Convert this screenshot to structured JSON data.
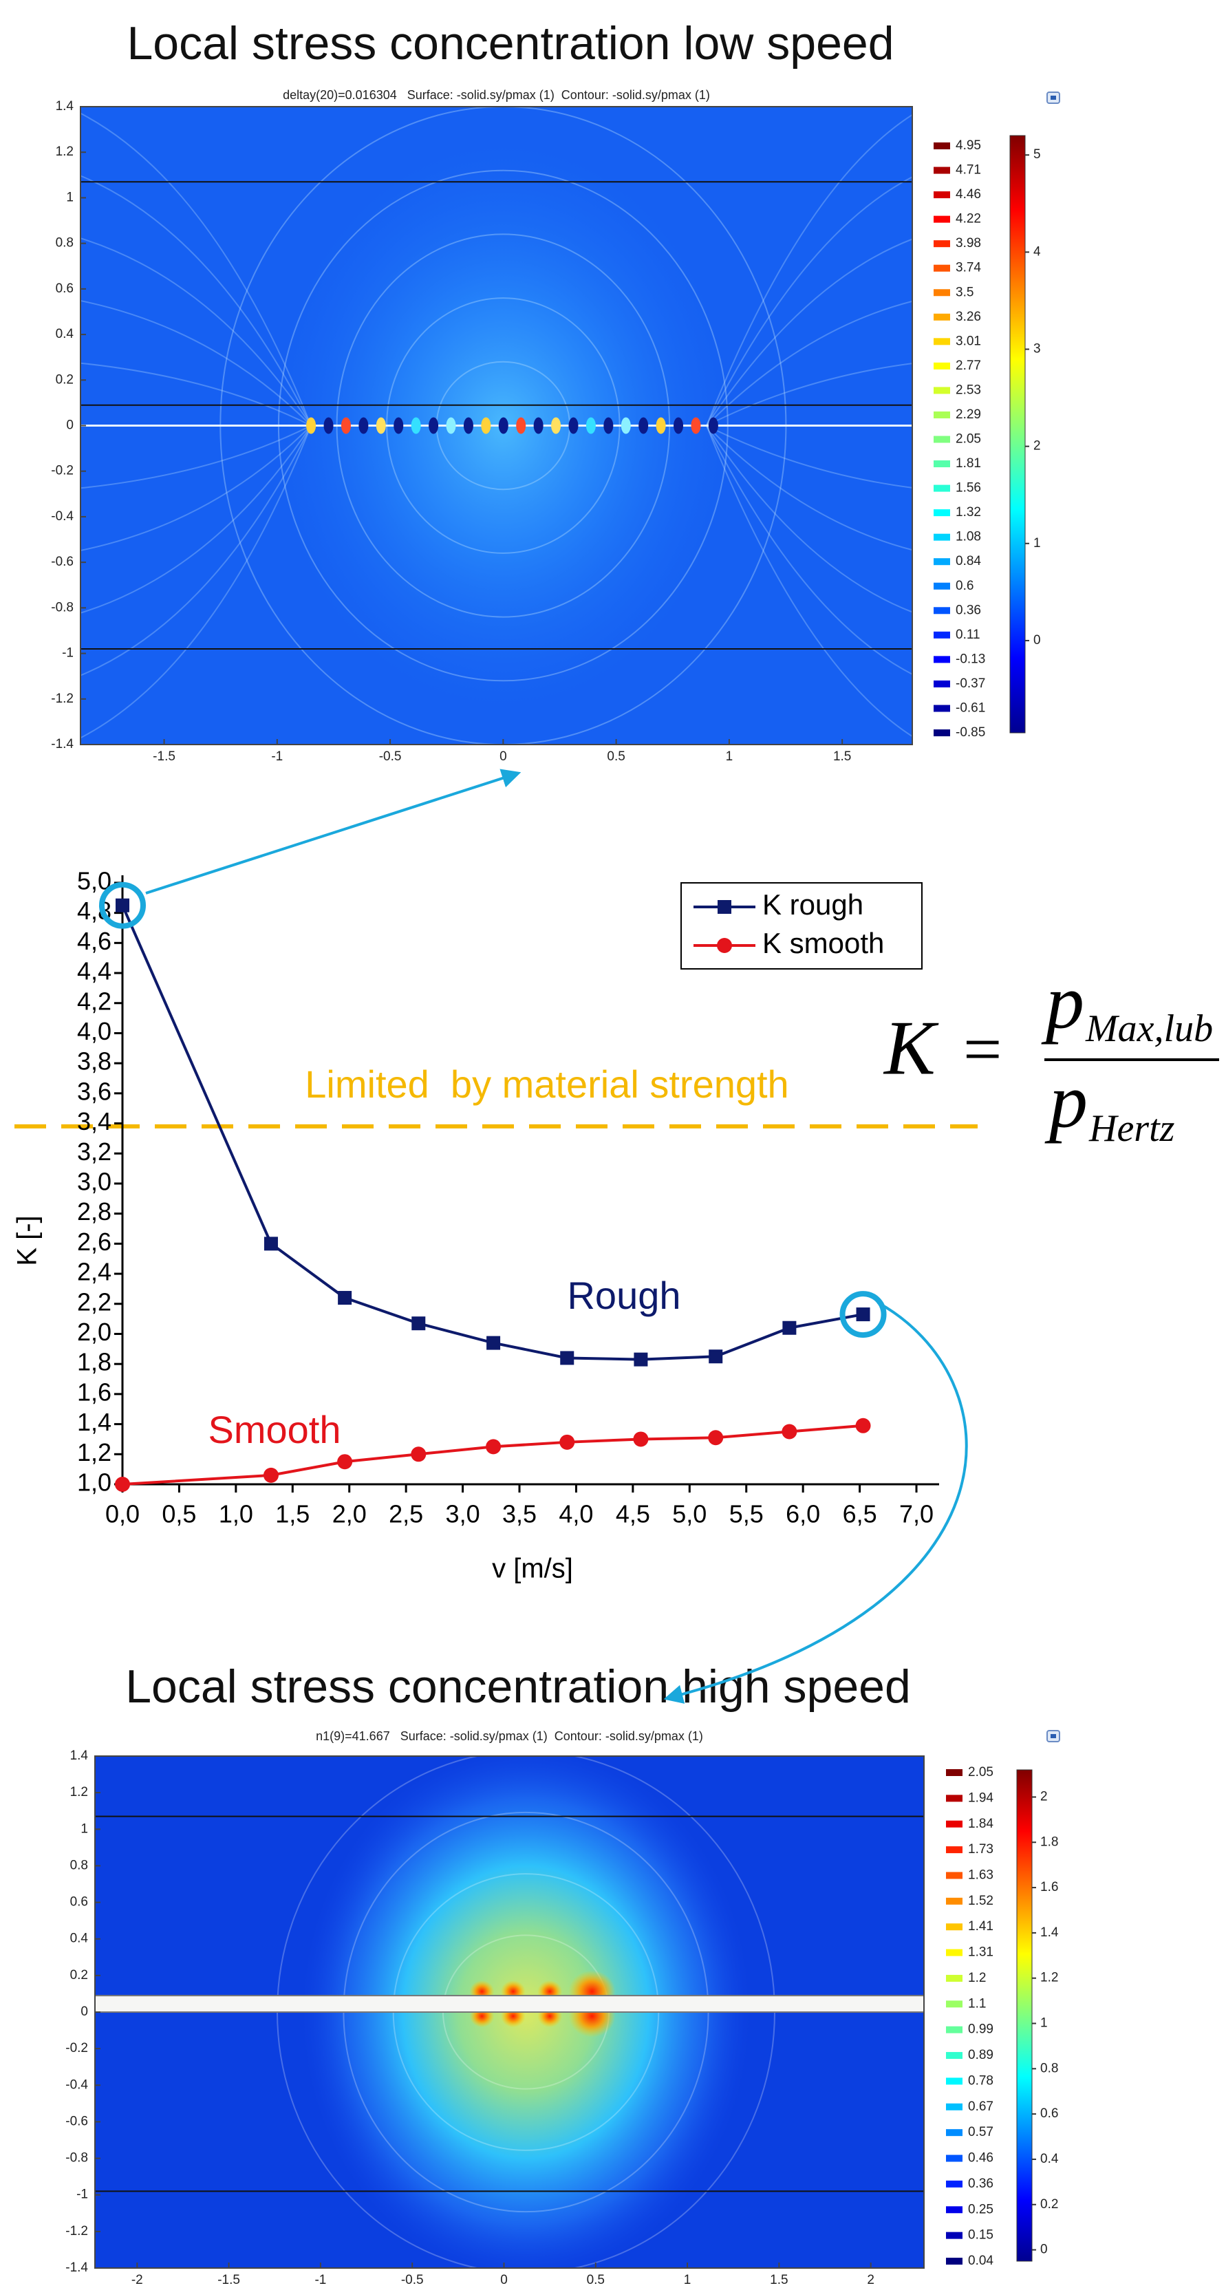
{
  "chart_data": [
    {
      "type": "contour",
      "title": "Local stress concentration low speed",
      "subtitle": "deltay(20)=0.016304   Surface: -solid.sy/pmax (1)  Contour: -solid.sy/pmax (1)",
      "xlim": [
        -1.87,
        1.81
      ],
      "xticks": [
        -1.5,
        -1,
        -0.5,
        0,
        0.5,
        1,
        1.5
      ],
      "ylim": [
        -1.4,
        1.4
      ],
      "yticks": [
        -1.4,
        -1.2,
        -1,
        -0.8,
        -0.6,
        -0.4,
        -0.2,
        0,
        0.2,
        0.4,
        0.6,
        0.8,
        1,
        1.2,
        1.4
      ],
      "levels": [
        4.95,
        4.71,
        4.46,
        4.22,
        3.98,
        3.74,
        3.5,
        3.26,
        3.01,
        2.77,
        2.53,
        2.29,
        2.05,
        1.81,
        1.56,
        1.32,
        1.08,
        0.84,
        0.6,
        0.36,
        0.11,
        -0.13,
        -0.37,
        -0.61,
        -0.85
      ],
      "colorbar_lim": [
        -0.95,
        5.2
      ],
      "colorbar_ticks": [
        0,
        1,
        2,
        3,
        4,
        5
      ],
      "boundary_lines": [
        1.07,
        0.09,
        -0.98
      ]
    },
    {
      "type": "line",
      "xlabel": "v [m/s]",
      "ylabel": "K [-]",
      "xlim": [
        0,
        7.2
      ],
      "ylim": [
        1,
        5.05
      ],
      "xticks": [
        {
          "value": 0,
          "label": "0,0"
        },
        {
          "value": 0.5,
          "label": "0,5"
        },
        {
          "value": 1,
          "label": "1,0"
        },
        {
          "value": 1.5,
          "label": "1,5"
        },
        {
          "value": 2,
          "label": "2,0"
        },
        {
          "value": 2.5,
          "label": "2,5"
        },
        {
          "value": 3,
          "label": "3,0"
        },
        {
          "value": 3.5,
          "label": "3,5"
        },
        {
          "value": 4,
          "label": "4,0"
        },
        {
          "value": 4.5,
          "label": "4,5"
        },
        {
          "value": 5,
          "label": "5,0"
        },
        {
          "value": 5.5,
          "label": "5,5"
        },
        {
          "value": 6,
          "label": "6,0"
        },
        {
          "value": 6.5,
          "label": "6,5"
        },
        {
          "value": 7,
          "label": "7,0"
        }
      ],
      "yticks": [
        {
          "value": 1,
          "label": "1,0"
        },
        {
          "value": 1.2,
          "label": "1,2"
        },
        {
          "value": 1.4,
          "label": "1,4"
        },
        {
          "value": 1.6,
          "label": "1,6"
        },
        {
          "value": 1.8,
          "label": "1,8"
        },
        {
          "value": 2,
          "label": "2,0"
        },
        {
          "value": 2.2,
          "label": "2,2"
        },
        {
          "value": 2.4,
          "label": "2,4"
        },
        {
          "value": 2.6,
          "label": "2,6"
        },
        {
          "value": 2.8,
          "label": "2,8"
        },
        {
          "value": 3,
          "label": "3,0"
        },
        {
          "value": 3.2,
          "label": "3,2"
        },
        {
          "value": 3.4,
          "label": "3,4"
        },
        {
          "value": 3.6,
          "label": "3,6"
        },
        {
          "value": 3.8,
          "label": "3,8"
        },
        {
          "value": 4,
          "label": "4,0"
        },
        {
          "value": 4.2,
          "label": "4,2"
        },
        {
          "value": 4.4,
          "label": "4,4"
        },
        {
          "value": 4.6,
          "label": "4,6"
        },
        {
          "value": 4.8,
          "label": "4,8"
        },
        {
          "value": 5,
          "label": "5,0"
        }
      ],
      "x": [
        0,
        1.31,
        1.96,
        2.61,
        3.27,
        3.92,
        4.57,
        5.23,
        5.88,
        6.53
      ],
      "series": [
        {
          "name": "K rough",
          "color": "#0d1a6b",
          "marker": "square",
          "values": [
            4.85,
            2.6,
            2.24,
            2.07,
            1.94,
            1.84,
            1.83,
            1.85,
            2.04,
            2.13
          ]
        },
        {
          "name": "K smooth",
          "color": "#e3141b",
          "marker": "circle",
          "values": [
            1.0,
            1.06,
            1.15,
            1.2,
            1.25,
            1.28,
            1.3,
            1.31,
            1.35,
            1.39
          ]
        }
      ],
      "annotations": [
        "Rough",
        "Smooth"
      ],
      "threshold": {
        "value": 3.38,
        "label": "Limited  by material strength",
        "color": "#f5b800"
      },
      "formula": {
        "lhs": "K",
        "equals": "=",
        "numerator": {
          "symbol": "p",
          "subscript": "Max,lub"
        },
        "denominator": {
          "symbol": "p",
          "subscript": "Hertz"
        }
      }
    },
    {
      "type": "contour",
      "title": "Local stress concentration high speed",
      "subtitle": "n1(9)=41.667   Surface: -solid.sy/pmax (1)  Contour: -solid.sy/pmax (1)",
      "xlim": [
        -2.23,
        2.29
      ],
      "xticks": [
        -2,
        -1.5,
        -1,
        -0.5,
        0,
        0.5,
        1,
        1.5,
        2
      ],
      "ylim": [
        -1.4,
        1.4
      ],
      "yticks": [
        -1.4,
        -1.2,
        -1,
        -0.8,
        -0.6,
        -0.4,
        -0.2,
        0,
        0.2,
        0.4,
        0.6,
        0.8,
        1,
        1.2,
        1.4
      ],
      "levels": [
        2.05,
        1.94,
        1.84,
        1.73,
        1.63,
        1.52,
        1.41,
        1.31,
        1.2,
        1.1,
        0.99,
        0.89,
        0.78,
        0.67,
        0.57,
        0.46,
        0.36,
        0.25,
        0.15,
        0.04
      ],
      "colorbar_lim": [
        -0.05,
        2.12
      ],
      "colorbar_ticks": [
        0,
        0.2,
        0.4,
        0.6,
        0.8,
        1,
        1.2,
        1.4,
        1.6,
        1.8,
        2
      ],
      "boundary_lines": [
        1.07,
        -0.98
      ],
      "film_band": [
        0,
        0.09
      ]
    }
  ]
}
